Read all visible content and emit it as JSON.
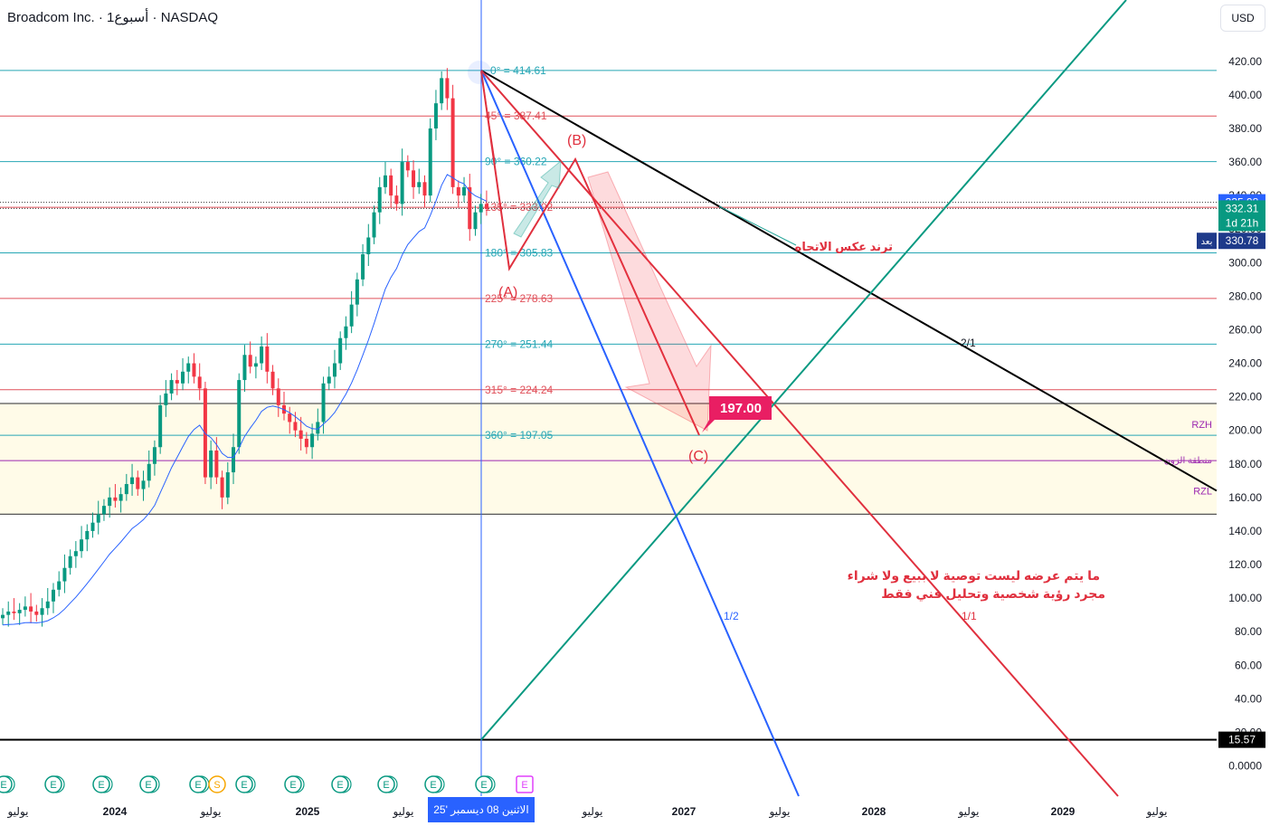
{
  "header": {
    "title": "Broadcom Inc. · 1أسبوع · NASDAQ",
    "currency_button": "USD"
  },
  "price_scale": {
    "ticks": [
      "420.00",
      "400.00",
      "380.00",
      "360.00",
      "340.00",
      "320.00",
      "300.00",
      "280.00",
      "260.00",
      "240.00",
      "220.00",
      "200.00",
      "180.00",
      "160.00",
      "140.00",
      "120.00",
      "100.00",
      "80.00",
      "60.00",
      "40.00",
      "20.00",
      "0.0000"
    ],
    "labels": {
      "top": "335.98",
      "last": "332.31",
      "countdown": "1d 21h",
      "after_hours_tag": "بعد",
      "after_hours": "330.78",
      "bottom": "15.57"
    }
  },
  "time_axis": {
    "labels": [
      "يوليو",
      "2024",
      "يوليو",
      "2025",
      "يوليو",
      "يوليو",
      "2027",
      "يوليو",
      "2028",
      "يوليو",
      "2029",
      "يوليو"
    ],
    "cursor_label": "الاثنين 08 ديسمبر '25"
  },
  "chart_data": {
    "type": "candlestick",
    "symbol": "Broadcom Inc.",
    "interval": "1W",
    "exchange": "NASDAQ",
    "y_range": [
      0,
      430
    ],
    "last_price": 332.31,
    "high_price": 414.61,
    "gann_levels": [
      {
        "label": "0° = 414.61",
        "value": 414.61,
        "color": "#26a6b5"
      },
      {
        "label": "45° = 387.41",
        "value": 387.41,
        "color": "#e0505a"
      },
      {
        "label": "90° = 360.22",
        "value": 360.22,
        "color": "#26a6b5"
      },
      {
        "label": "135° = 333.02",
        "value": 333.02,
        "color": "#e0505a"
      },
      {
        "label": "180° = 305.83",
        "value": 305.83,
        "color": "#26a6b5"
      },
      {
        "label": "225° = 278.63",
        "value": 278.63,
        "color": "#e0505a"
      },
      {
        "label": "270° = 251.44",
        "value": 251.44,
        "color": "#26a6b5"
      },
      {
        "label": "315° = 224.24",
        "value": 224.24,
        "color": "#e0505a"
      },
      {
        "label": "360° = 197.05",
        "value": 197.05,
        "color": "#26a6b5"
      }
    ],
    "zone": {
      "top": 216,
      "mid": 182,
      "bottom": 150,
      "top_label": "RZH",
      "mid_label": "منطقة الزون",
      "bottom_label": "RZL"
    },
    "target": {
      "label": "197.00",
      "value": 197.0
    },
    "wave_labels": [
      "(A)",
      "(B)",
      "(C)"
    ],
    "fan_labels": [
      "2/1",
      "1/2",
      "1/1"
    ],
    "trendline_label": "ترند عكس الاتجاه",
    "disclaimer_line1": "ما يتم عرضه ليست توصية  لا ببيع ولا شراء",
    "disclaimer_line2": "مجرد رؤية شخصية وتحليل فني  فقط",
    "close_series": [
      90,
      92,
      91,
      93,
      95,
      92,
      90,
      94,
      98,
      105,
      110,
      118,
      125,
      128,
      135,
      140,
      145,
      150,
      155,
      160,
      158,
      162,
      168,
      172,
      165,
      170,
      180,
      190,
      215,
      222,
      230,
      228,
      235,
      240,
      232,
      225,
      172,
      188,
      172,
      160,
      175,
      190,
      230,
      245,
      238,
      240,
      250,
      235,
      225,
      215,
      210,
      205,
      200,
      195,
      190,
      198,
      205,
      228,
      232,
      240,
      255,
      262,
      275,
      290,
      305,
      315,
      330,
      345,
      352,
      340,
      335,
      360,
      355,
      345,
      348,
      340,
      380,
      395,
      410,
      398,
      345,
      340,
      345,
      320,
      330,
      335,
      332
    ],
    "events": [
      "E",
      "E",
      "E",
      "E",
      "E",
      "S",
      "E",
      "E",
      "E",
      "E",
      "E",
      "E",
      "E"
    ]
  }
}
